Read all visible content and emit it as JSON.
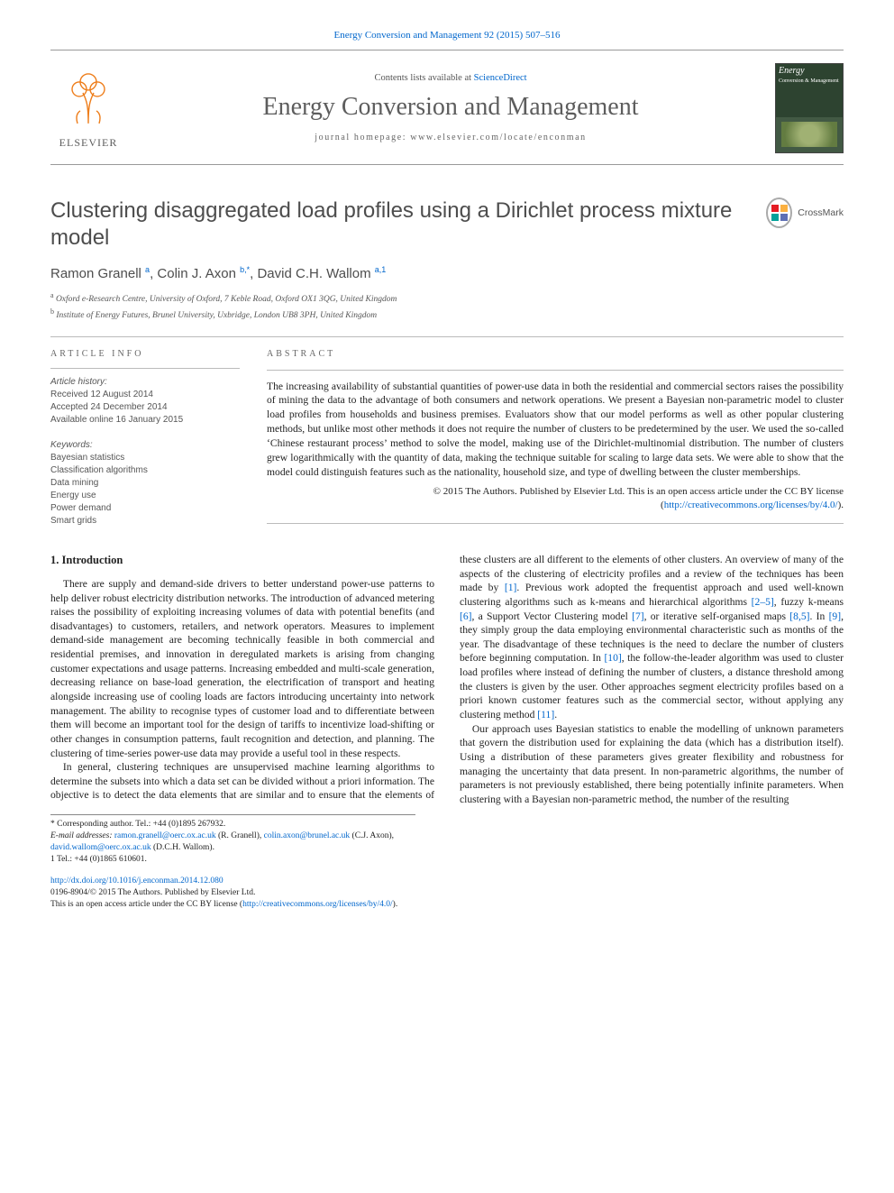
{
  "journal": {
    "citation": "Energy Conversion and Management 92 (2015) 507–516",
    "contents_line_prefix": "Contents lists available at ",
    "contents_line_link": "ScienceDirect",
    "title": "Energy Conversion and Management",
    "homepage_label": "journal homepage: www.elsevier.com/locate/enconman",
    "publisher_wordmark": "ELSEVIER",
    "cover_text_top": "Energy",
    "cover_text_sub": "Conversion & Management"
  },
  "crossmark_label": "CrossMark",
  "paper": {
    "title": "Clustering disaggregated load profiles using a Dirichlet process mixture model",
    "authors_html": "Ramon Granell <sup>a</sup>, Colin J. Axon <sup>b,*</sup>, David C.H. Wallom <sup>a,1</sup>",
    "affiliations": [
      {
        "tag": "a",
        "text": "Oxford e-Research Centre, University of Oxford, 7 Keble Road, Oxford OX1 3QG, United Kingdom"
      },
      {
        "tag": "b",
        "text": "Institute of Energy Futures, Brunel University, Uxbridge, London UB8 3PH, United Kingdom"
      }
    ]
  },
  "article_info": {
    "heading": "ARTICLE INFO",
    "history_label": "Article history:",
    "history": [
      "Received 12 August 2014",
      "Accepted 24 December 2014",
      "Available online 16 January 2015"
    ],
    "keywords_label": "Keywords:",
    "keywords": [
      "Bayesian statistics",
      "Classification algorithms",
      "Data mining",
      "Energy use",
      "Power demand",
      "Smart grids"
    ]
  },
  "abstract": {
    "heading": "ABSTRACT",
    "text": "The increasing availability of substantial quantities of power-use data in both the residential and commercial sectors raises the possibility of mining the data to the advantage of both consumers and network operations. We present a Bayesian non-parametric model to cluster load profiles from households and business premises. Evaluators show that our model performs as well as other popular clustering methods, but unlike most other methods it does not require the number of clusters to be predetermined by the user. We used the so-called ‘Chinese restaurant process’ method to solve the model, making use of the Dirichlet-multinomial distribution. The number of clusters grew logarithmically with the quantity of data, making the technique suitable for scaling to large data sets. We were able to show that the model could distinguish features such as the nationality, household size, and type of dwelling between the cluster memberships.",
    "copyright_prefix": "© 2015 The Authors. Published by Elsevier Ltd. This is an open access article under the CC BY license (",
    "copyright_link": "http://creativecommons.org/licenses/by/4.0/",
    "copyright_suffix": ")."
  },
  "body": {
    "section_heading": "1. Introduction",
    "p1": "There are supply and demand-side drivers to better understand power-use patterns to help deliver robust electricity distribution networks. The introduction of advanced metering raises the possibility of exploiting increasing volumes of data with potential benefits (and disadvantages) to customers, retailers, and network operators. Measures to implement demand-side management are becoming technically feasible in both commercial and residential premises, and innovation in deregulated markets is arising from changing customer expectations and usage patterns. Increasing embedded and multi-scale generation, decreasing reliance on base-load generation, the electrification of transport and heating alongside increasing use of cooling loads are factors introducing uncertainty into network management. The ability to recognise types of customer load and to differentiate between them will become an important tool for the design of tariffs to incentivize load-shifting or other changes in consumption patterns, fault recognition and detection, and planning. The clustering of time-series power-use data may provide a useful tool in these respects.",
    "p2": "In general, clustering techniques are unsupervised machine learning algorithms to determine the subsets into which a data set can be divided without a priori information. The objective is to detect the data elements that are similar and to ensure that the elements of these clusters are all different to the elements of other clusters. An overview of many of the aspects of the clustering of electricity profiles and a review of the techniques has been made by [1]. Previous work adopted the frequentist approach and used well-known clustering algorithms such as k-means and hierarchical algorithms [2–5], fuzzy k-means [6], a Support Vector Clustering model [7], or iterative self-organised maps [8,5]. In [9], they simply group the data employing environmental characteristic such as months of the year. The disadvantage of these techniques is the need to declare the number of clusters before beginning computation. In [10], the follow-the-leader algorithm was used to cluster load profiles where instead of defining the number of clusters, a distance threshold among the clusters is given by the user. Other approaches segment electricity profiles based on a priori known customer features such as the commercial sector, without applying any clustering method [11].",
    "p3": "Our approach uses Bayesian statistics to enable the modelling of unknown parameters that govern the distribution used for explaining the data (which has a distribution itself). Using a distribution of these parameters gives greater flexibility and robustness for managing the uncertainty that data present. In non-parametric algorithms, the number of parameters is not previously established, there being potentially infinite parameters. When clustering with a Bayesian non-parametric method, the number of the resulting"
  },
  "footnotes": {
    "corr": "* Corresponding author. Tel.: +44 (0)1895 267932.",
    "emails_label": "E-mail addresses: ",
    "emails": [
      {
        "addr": "ramon.granell@oerc.ox.ac.uk",
        "who": "(R. Granell)"
      },
      {
        "addr": "colin.axon@brunel.ac.uk",
        "who": "(C.J. Axon)"
      },
      {
        "addr": "david.wallom@oerc.ox.ac.uk",
        "who": "(D.C.H. Wallom)."
      }
    ],
    "tel_note": "1 Tel.: +44 (0)1865 610601."
  },
  "footer": {
    "doi": "http://dx.doi.org/10.1016/j.enconman.2014.12.080",
    "issn_line": "0196-8904/© 2015 The Authors. Published by Elsevier Ltd.",
    "license_prefix": "This is an open access article under the CC BY license (",
    "license_link": "http://creativecommons.org/licenses/by/4.0/",
    "license_suffix": ")."
  },
  "refs": {
    "r1": "[1]",
    "r25": "[2–5]",
    "r6": "[6]",
    "r7": "[7]",
    "r85": "[8,5]",
    "r9": "[9]",
    "r10": "[10]",
    "r11": "[11]"
  },
  "colors": {
    "link": "#0066cc",
    "heading_gray": "#4d4d4d",
    "elsevier_orange": "#ee7d1a"
  }
}
